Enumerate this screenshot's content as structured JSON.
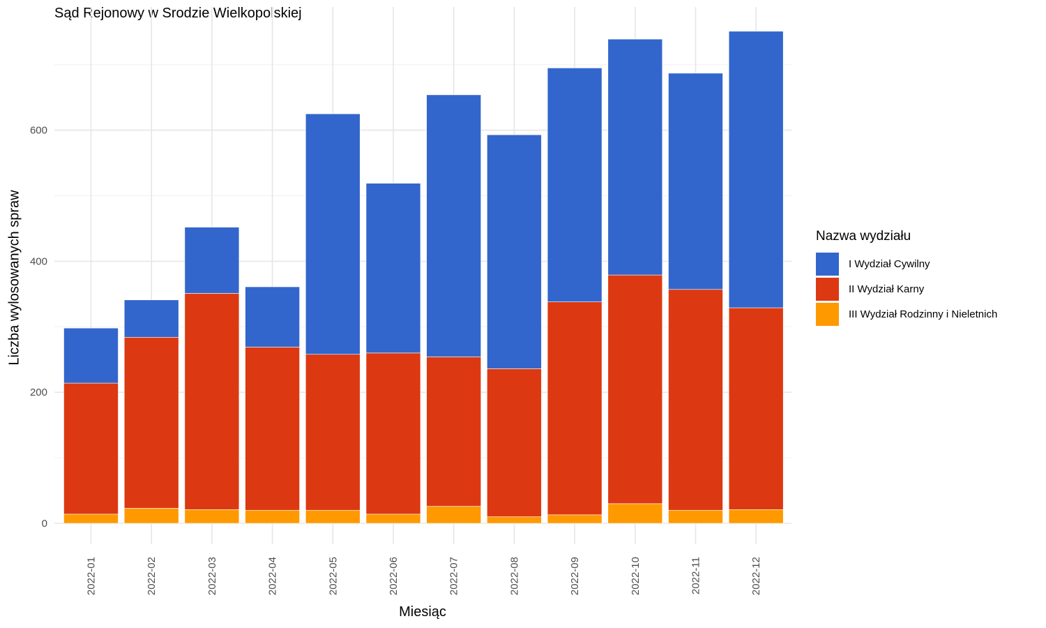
{
  "chart_data": {
    "type": "bar",
    "stacked": true,
    "title": "Sąd Rejonowy w Srodzie Wielkopolskiej",
    "xlabel": "Miesiąc",
    "ylabel": "Liczba wylosowanych spraw",
    "legend_title": "Nazwa wydziału",
    "legend_position": "right",
    "grid": true,
    "ylim": [
      0,
      785
    ],
    "yticks": [
      0,
      200,
      400,
      600
    ],
    "categories": [
      "2022-01",
      "2022-02",
      "2022-03",
      "2022-04",
      "2022-05",
      "2022-06",
      "2022-07",
      "2022-08",
      "2022-09",
      "2022-10",
      "2022-11",
      "2022-12"
    ],
    "series": [
      {
        "name": "III Wydział Rodzinny i Nieletnich",
        "color": "#FF9900",
        "values": [
          14,
          23,
          21,
          20,
          20,
          14,
          26,
          10,
          13,
          30,
          20,
          21
        ]
      },
      {
        "name": "II Wydział Karny",
        "color": "#DC3912",
        "values": [
          200,
          261,
          330,
          249,
          238,
          246,
          228,
          226,
          325,
          349,
          337,
          308
        ]
      },
      {
        "name": "I Wydział Cywilny",
        "color": "#3366CC",
        "values": [
          84,
          57,
          101,
          92,
          367,
          259,
          400,
          357,
          357,
          360,
          330,
          422
        ]
      }
    ]
  }
}
